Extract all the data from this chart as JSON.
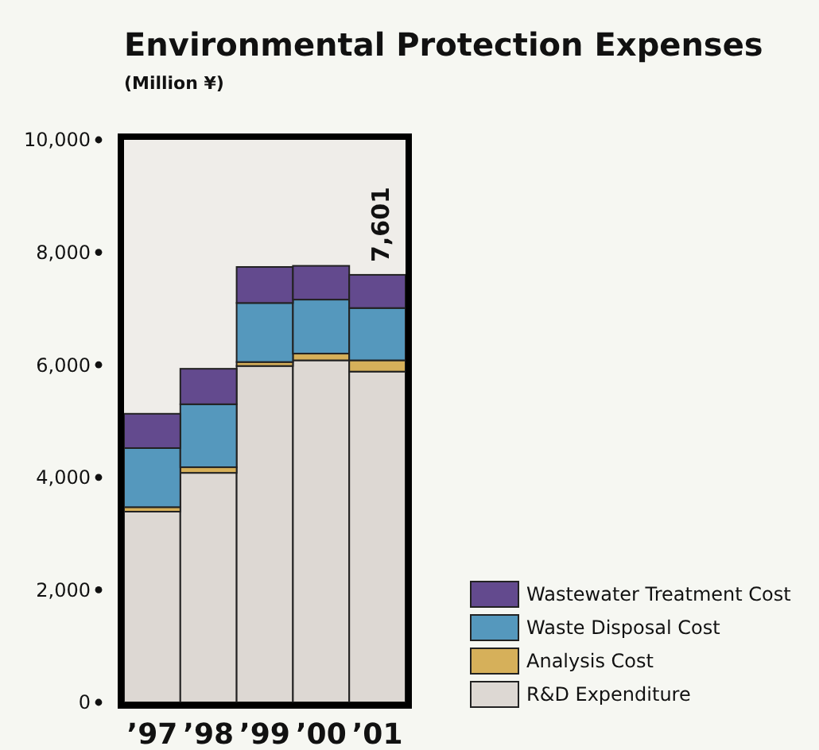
{
  "chart_data": {
    "type": "bar",
    "stacked": true,
    "title": "Environmental Protection Expenses",
    "subtitle": "(Million ¥)",
    "categories": [
      "’97",
      "’98",
      "’99",
      "’00",
      "’01"
    ],
    "series": [
      {
        "name": "R&D Expenditure",
        "color": "#ddd8d3",
        "values": [
          3390,
          4080,
          5980,
          6080,
          5880
        ]
      },
      {
        "name": "Analysis Cost",
        "color": "#d6b05a",
        "values": [
          80,
          100,
          70,
          120,
          200
        ]
      },
      {
        "name": "Waste Disposal Cost",
        "color": "#5598bd",
        "values": [
          1050,
          1120,
          1050,
          960,
          930
        ]
      },
      {
        "name": "Wastewater Treatment Cost",
        "color": "#634a8e",
        "values": [
          610,
          630,
          640,
          600,
          590
        ]
      }
    ],
    "totals": [
      null,
      null,
      null,
      null,
      "7,601"
    ],
    "ylim": [
      0,
      10000
    ],
    "yticks": [
      0,
      {
        "value": 2000,
        "label": "2,000"
      },
      {
        "value": 4000,
        "label": "4,000"
      },
      {
        "value": 6000,
        "label": "6,000"
      },
      {
        "value": 8000,
        "label": "8,000"
      },
      {
        "value": 10000,
        "label": "10,000"
      }
    ],
    "legend": "bottom right"
  }
}
